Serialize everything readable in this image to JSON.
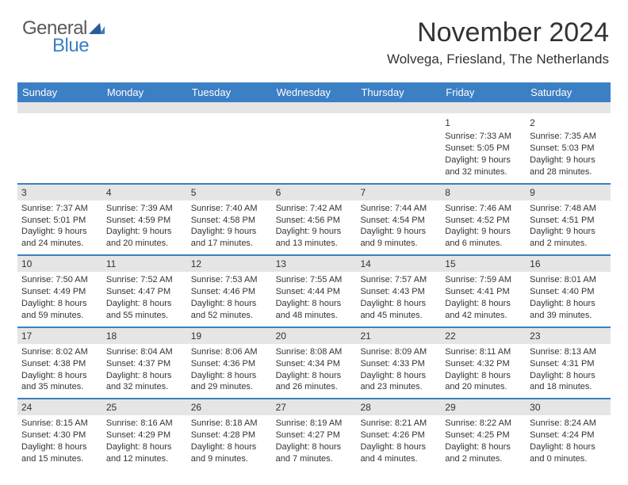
{
  "brand": {
    "word1": "General",
    "word2": "Blue"
  },
  "title": {
    "month": "November 2024",
    "location": "Wolvega, Friesland, The Netherlands"
  },
  "columns": [
    "Sunday",
    "Monday",
    "Tuesday",
    "Wednesday",
    "Thursday",
    "Friday",
    "Saturday"
  ],
  "colors": {
    "header_bg": "#3b7fc4",
    "header_text": "#ffffff",
    "band_bg": "#e5e5e5",
    "rule": "#3b7fc4",
    "text": "#333333",
    "background": "#ffffff",
    "logo_grey": "#5a5a5a",
    "logo_blue": "#3b7fc4"
  },
  "layout": {
    "type": "table",
    "columns_count": 7,
    "rows_count": 5,
    "cell_fontsize_pt": 8,
    "header_fontsize_pt": 10,
    "title_fontsize_pt": 26,
    "location_fontsize_pt": 13
  },
  "weeks": [
    [
      null,
      null,
      null,
      null,
      null,
      {
        "n": "1",
        "sr": "Sunrise: 7:33 AM",
        "ss": "Sunset: 5:05 PM",
        "dl1": "Daylight: 9 hours",
        "dl2": "and 32 minutes."
      },
      {
        "n": "2",
        "sr": "Sunrise: 7:35 AM",
        "ss": "Sunset: 5:03 PM",
        "dl1": "Daylight: 9 hours",
        "dl2": "and 28 minutes."
      }
    ],
    [
      {
        "n": "3",
        "sr": "Sunrise: 7:37 AM",
        "ss": "Sunset: 5:01 PM",
        "dl1": "Daylight: 9 hours",
        "dl2": "and 24 minutes."
      },
      {
        "n": "4",
        "sr": "Sunrise: 7:39 AM",
        "ss": "Sunset: 4:59 PM",
        "dl1": "Daylight: 9 hours",
        "dl2": "and 20 minutes."
      },
      {
        "n": "5",
        "sr": "Sunrise: 7:40 AM",
        "ss": "Sunset: 4:58 PM",
        "dl1": "Daylight: 9 hours",
        "dl2": "and 17 minutes."
      },
      {
        "n": "6",
        "sr": "Sunrise: 7:42 AM",
        "ss": "Sunset: 4:56 PM",
        "dl1": "Daylight: 9 hours",
        "dl2": "and 13 minutes."
      },
      {
        "n": "7",
        "sr": "Sunrise: 7:44 AM",
        "ss": "Sunset: 4:54 PM",
        "dl1": "Daylight: 9 hours",
        "dl2": "and 9 minutes."
      },
      {
        "n": "8",
        "sr": "Sunrise: 7:46 AM",
        "ss": "Sunset: 4:52 PM",
        "dl1": "Daylight: 9 hours",
        "dl2": "and 6 minutes."
      },
      {
        "n": "9",
        "sr": "Sunrise: 7:48 AM",
        "ss": "Sunset: 4:51 PM",
        "dl1": "Daylight: 9 hours",
        "dl2": "and 2 minutes."
      }
    ],
    [
      {
        "n": "10",
        "sr": "Sunrise: 7:50 AM",
        "ss": "Sunset: 4:49 PM",
        "dl1": "Daylight: 8 hours",
        "dl2": "and 59 minutes."
      },
      {
        "n": "11",
        "sr": "Sunrise: 7:52 AM",
        "ss": "Sunset: 4:47 PM",
        "dl1": "Daylight: 8 hours",
        "dl2": "and 55 minutes."
      },
      {
        "n": "12",
        "sr": "Sunrise: 7:53 AM",
        "ss": "Sunset: 4:46 PM",
        "dl1": "Daylight: 8 hours",
        "dl2": "and 52 minutes."
      },
      {
        "n": "13",
        "sr": "Sunrise: 7:55 AM",
        "ss": "Sunset: 4:44 PM",
        "dl1": "Daylight: 8 hours",
        "dl2": "and 48 minutes."
      },
      {
        "n": "14",
        "sr": "Sunrise: 7:57 AM",
        "ss": "Sunset: 4:43 PM",
        "dl1": "Daylight: 8 hours",
        "dl2": "and 45 minutes."
      },
      {
        "n": "15",
        "sr": "Sunrise: 7:59 AM",
        "ss": "Sunset: 4:41 PM",
        "dl1": "Daylight: 8 hours",
        "dl2": "and 42 minutes."
      },
      {
        "n": "16",
        "sr": "Sunrise: 8:01 AM",
        "ss": "Sunset: 4:40 PM",
        "dl1": "Daylight: 8 hours",
        "dl2": "and 39 minutes."
      }
    ],
    [
      {
        "n": "17",
        "sr": "Sunrise: 8:02 AM",
        "ss": "Sunset: 4:38 PM",
        "dl1": "Daylight: 8 hours",
        "dl2": "and 35 minutes."
      },
      {
        "n": "18",
        "sr": "Sunrise: 8:04 AM",
        "ss": "Sunset: 4:37 PM",
        "dl1": "Daylight: 8 hours",
        "dl2": "and 32 minutes."
      },
      {
        "n": "19",
        "sr": "Sunrise: 8:06 AM",
        "ss": "Sunset: 4:36 PM",
        "dl1": "Daylight: 8 hours",
        "dl2": "and 29 minutes."
      },
      {
        "n": "20",
        "sr": "Sunrise: 8:08 AM",
        "ss": "Sunset: 4:34 PM",
        "dl1": "Daylight: 8 hours",
        "dl2": "and 26 minutes."
      },
      {
        "n": "21",
        "sr": "Sunrise: 8:09 AM",
        "ss": "Sunset: 4:33 PM",
        "dl1": "Daylight: 8 hours",
        "dl2": "and 23 minutes."
      },
      {
        "n": "22",
        "sr": "Sunrise: 8:11 AM",
        "ss": "Sunset: 4:32 PM",
        "dl1": "Daylight: 8 hours",
        "dl2": "and 20 minutes."
      },
      {
        "n": "23",
        "sr": "Sunrise: 8:13 AM",
        "ss": "Sunset: 4:31 PM",
        "dl1": "Daylight: 8 hours",
        "dl2": "and 18 minutes."
      }
    ],
    [
      {
        "n": "24",
        "sr": "Sunrise: 8:15 AM",
        "ss": "Sunset: 4:30 PM",
        "dl1": "Daylight: 8 hours",
        "dl2": "and 15 minutes."
      },
      {
        "n": "25",
        "sr": "Sunrise: 8:16 AM",
        "ss": "Sunset: 4:29 PM",
        "dl1": "Daylight: 8 hours",
        "dl2": "and 12 minutes."
      },
      {
        "n": "26",
        "sr": "Sunrise: 8:18 AM",
        "ss": "Sunset: 4:28 PM",
        "dl1": "Daylight: 8 hours",
        "dl2": "and 9 minutes."
      },
      {
        "n": "27",
        "sr": "Sunrise: 8:19 AM",
        "ss": "Sunset: 4:27 PM",
        "dl1": "Daylight: 8 hours",
        "dl2": "and 7 minutes."
      },
      {
        "n": "28",
        "sr": "Sunrise: 8:21 AM",
        "ss": "Sunset: 4:26 PM",
        "dl1": "Daylight: 8 hours",
        "dl2": "and 4 minutes."
      },
      {
        "n": "29",
        "sr": "Sunrise: 8:22 AM",
        "ss": "Sunset: 4:25 PM",
        "dl1": "Daylight: 8 hours",
        "dl2": "and 2 minutes."
      },
      {
        "n": "30",
        "sr": "Sunrise: 8:24 AM",
        "ss": "Sunset: 4:24 PM",
        "dl1": "Daylight: 8 hours",
        "dl2": "and 0 minutes."
      }
    ]
  ]
}
